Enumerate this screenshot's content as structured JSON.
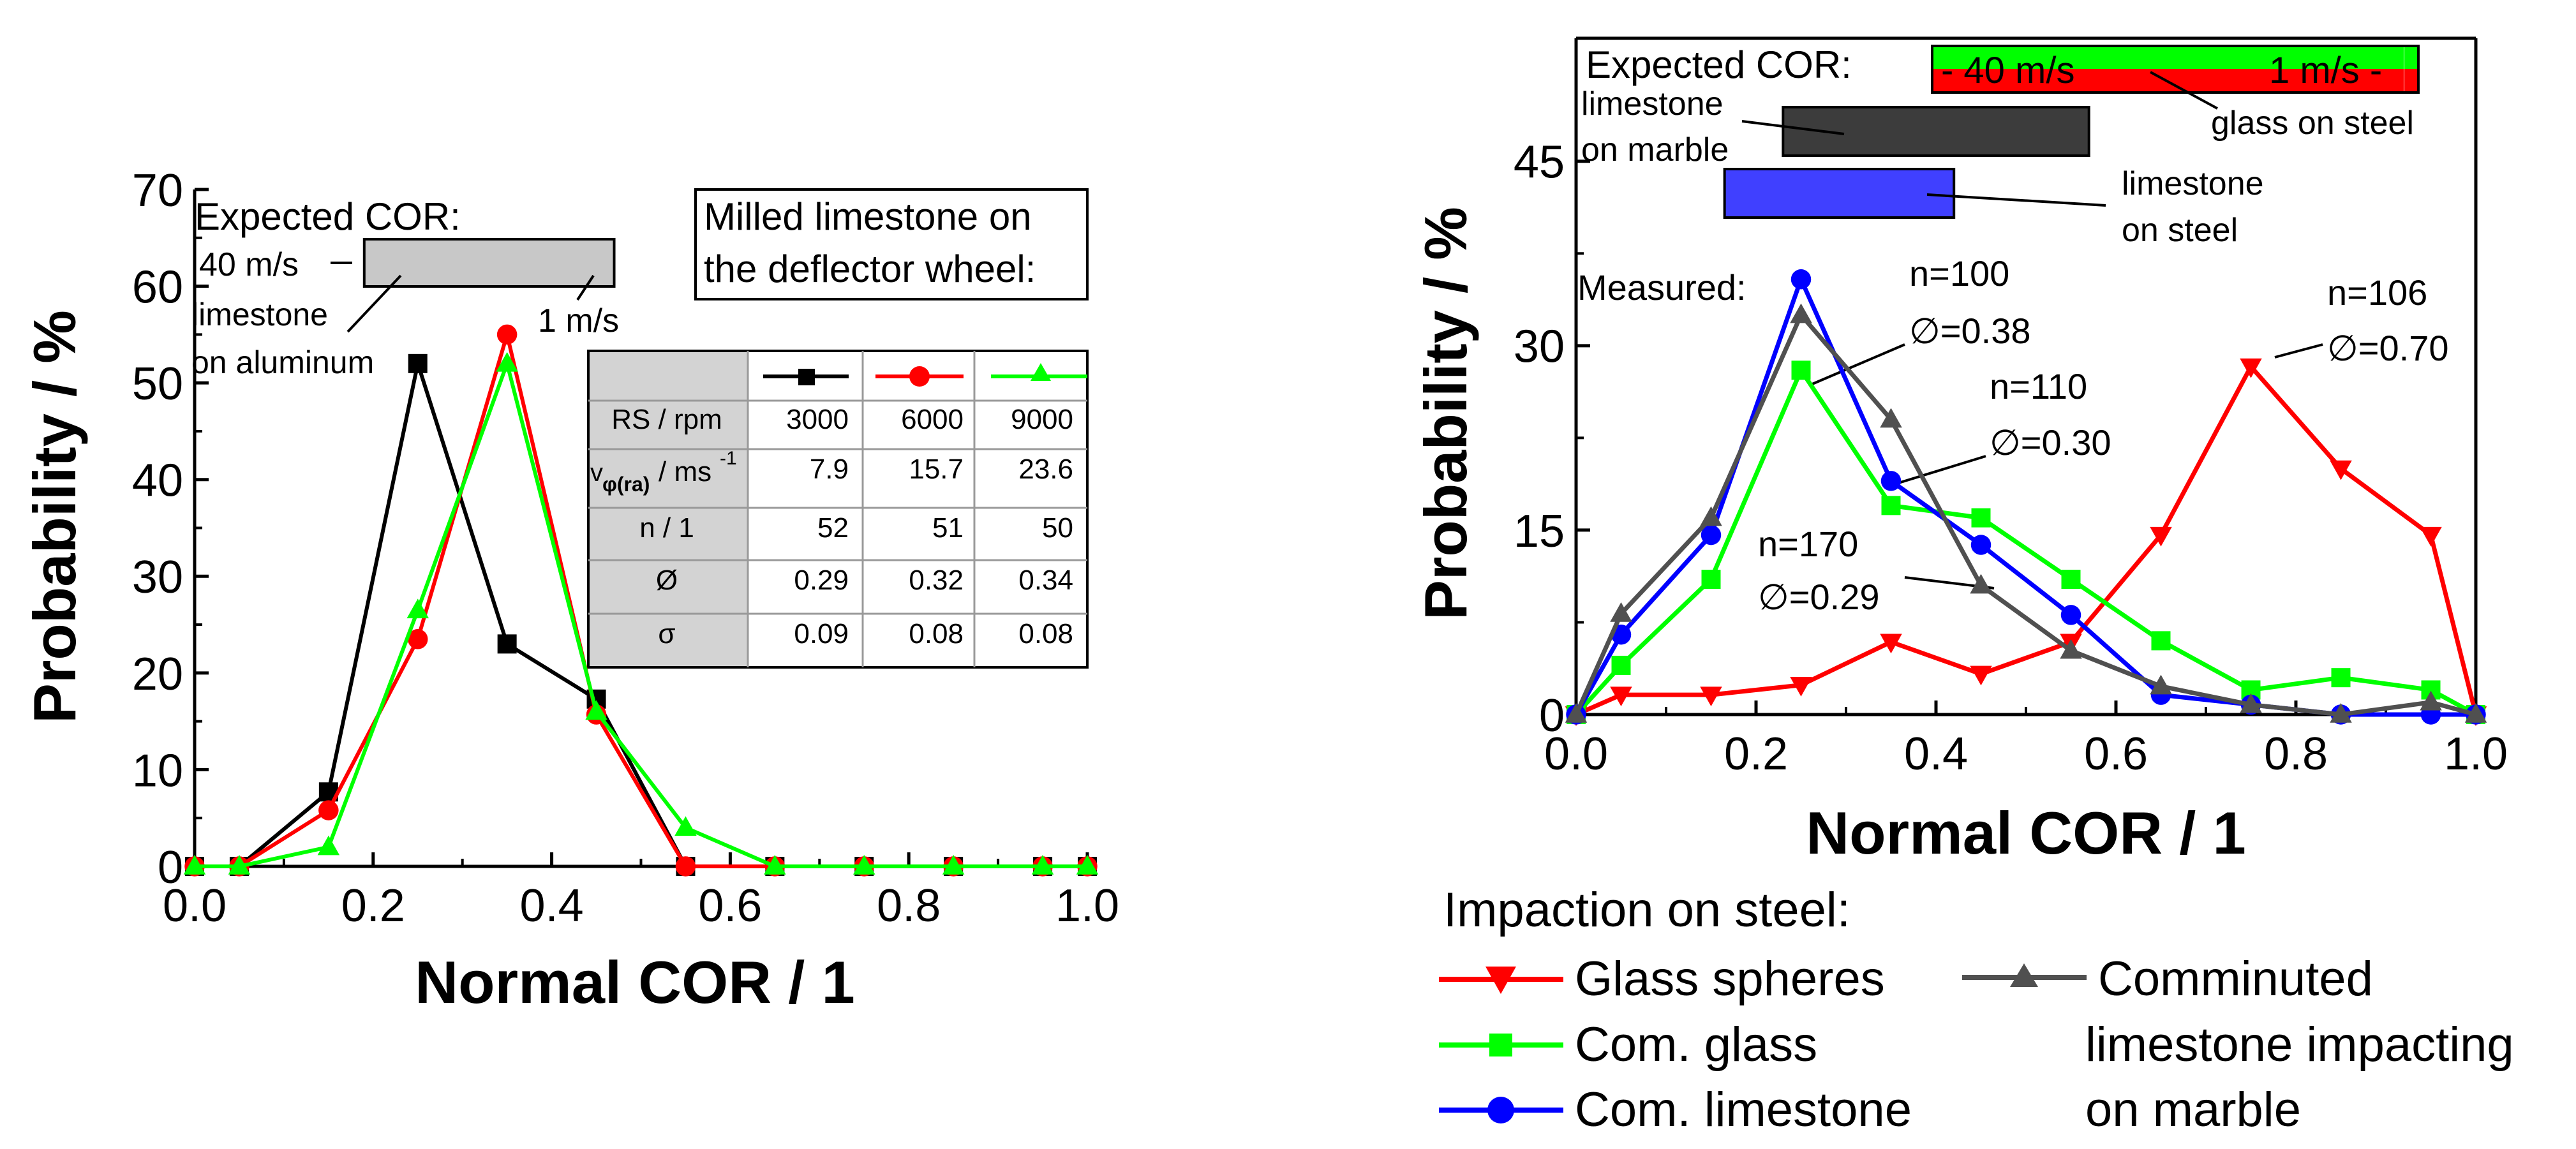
{
  "chart_data": [
    {
      "type": "line",
      "xlabel": "Normal COR / 1",
      "ylabel": "Probability / %",
      "xlim": [
        0,
        1.0
      ],
      "ylim": [
        0,
        70
      ],
      "xticks": [
        "0.0",
        "0.2",
        "0.4",
        "0.6",
        "0.8",
        "1.0"
      ],
      "yticks": [
        "0",
        "10",
        "20",
        "30",
        "40",
        "50",
        "60",
        "70"
      ],
      "x": [
        0.0,
        0.05,
        0.15,
        0.25,
        0.35,
        0.45,
        0.55,
        0.65,
        0.75,
        0.85,
        0.95,
        1.0
      ],
      "series": [
        {
          "color": "#000000",
          "marker": "square",
          "values": [
            0,
            0,
            7.7,
            52,
            23,
            17.3,
            0,
            0,
            0,
            0,
            0,
            0
          ]
        },
        {
          "color": "#ff0000",
          "marker": "circle",
          "values": [
            0,
            0,
            5.8,
            23.5,
            55,
            15.7,
            0,
            0,
            0,
            0,
            0,
            0
          ]
        },
        {
          "color": "#00ff00",
          "marker": "triangle",
          "values": [
            0,
            0,
            2,
            26.5,
            52,
            16,
            4,
            0,
            0,
            0,
            0,
            0
          ]
        }
      ],
      "expected": {
        "title": "Expected COR:",
        "high_label": "40 m/s",
        "low_label": "1 m/s",
        "material_line1": "limestone",
        "material_line2": "on aluminum",
        "range": [
          0.19,
          0.47
        ]
      },
      "legend_title_line1": "Milled limestone on",
      "legend_title_line2": "the deflector wheel:",
      "table": {
        "row_headers": [
          "RS / rpm",
          "v",
          "φ(ra)",
          " / ms",
          "-1",
          "n / 1",
          "Ø",
          "σ"
        ],
        "columns": [
          {
            "rs": "3000",
            "v": "7.9",
            "n": "52",
            "mean": "0.29",
            "sd": "0.09"
          },
          {
            "rs": "6000",
            "v": "15.7",
            "n": "51",
            "mean": "0.32",
            "sd": "0.08"
          },
          {
            "rs": "9000",
            "v": "23.6",
            "n": "50",
            "mean": "0.34",
            "sd": "0.08"
          }
        ]
      }
    },
    {
      "type": "line",
      "xlabel": "Normal COR / 1",
      "ylabel": "Probability / %",
      "xlim": [
        0,
        1.0
      ],
      "ylim": [
        0,
        55
      ],
      "xticks": [
        "0.0",
        "0.2",
        "0.4",
        "0.6",
        "0.8",
        "1.0"
      ],
      "yticks": [
        "0",
        "15",
        "30",
        "45"
      ],
      "x": [
        0.0,
        0.05,
        0.15,
        0.25,
        0.35,
        0.45,
        0.55,
        0.65,
        0.75,
        0.85,
        0.95,
        1.0
      ],
      "series": [
        {
          "name": "Glass spheres",
          "color": "#ff0000",
          "marker": "triangle-down",
          "values": [
            0,
            1.6,
            1.6,
            2.4,
            5.9,
            3.3,
            5.9,
            14.6,
            28.3,
            20,
            14.6,
            0
          ]
        },
        {
          "name": "Com. glass",
          "color": "#00ff00",
          "marker": "square",
          "values": [
            0,
            4,
            11,
            28,
            17,
            16,
            11,
            6,
            2,
            3,
            2,
            0
          ]
        },
        {
          "name": "Com. limestone",
          "color": "#0000ff",
          "marker": "circle",
          "values": [
            0,
            6.5,
            14.6,
            35.4,
            19,
            13.8,
            8.1,
            1.6,
            0.8,
            0,
            0,
            0
          ]
        },
        {
          "name": "Comminuted limestone impacting on marble",
          "color": "#505050",
          "marker": "triangle",
          "values": [
            0,
            8.2,
            16,
            32.5,
            24,
            10.5,
            5.2,
            2.3,
            0.8,
            0,
            1,
            0
          ]
        }
      ],
      "expected": {
        "title": "Expected COR:",
        "high_label": "- 40 m/s",
        "low_label": "1 m/s -",
        "glass_label": "glass on steel",
        "marble_label_line1": "limestone",
        "marble_label_line2": "on marble",
        "steel_label_line1": "limestone",
        "steel_label_line2": "on steel",
        "glass_range": [
          0.4,
          0.92
        ],
        "marble_range": [
          0.23,
          0.57
        ],
        "steel_range": [
          0.165,
          0.42
        ]
      },
      "measured_label": "Measured:",
      "annotations": [
        {
          "n": "n=100",
          "mean": "∅=0.38"
        },
        {
          "n": "n=110",
          "mean": "∅=0.30"
        },
        {
          "n": "n=170",
          "mean": "∅=0.29"
        },
        {
          "n": "n=106",
          "mean": "∅=0.70"
        }
      ],
      "legend": {
        "title": "Impaction on steel:",
        "items": [
          "Glass spheres",
          "Com. glass",
          "Com. limestone"
        ],
        "marble_line1": "Comminuted",
        "marble_line2": "limestone impacting",
        "marble_line3": "on marble"
      }
    }
  ]
}
